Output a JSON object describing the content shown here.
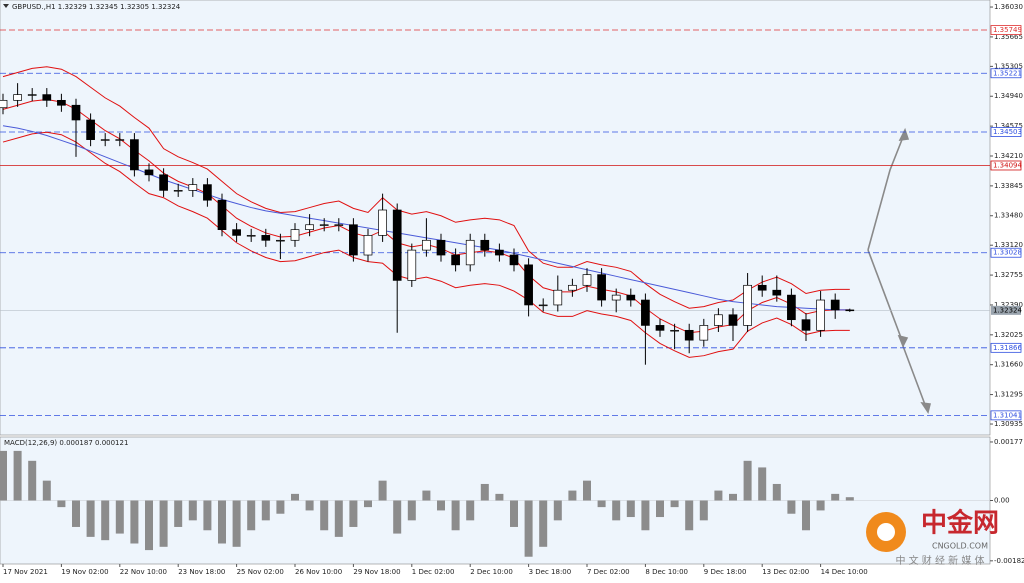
{
  "chart_data": {
    "type": "candlestick",
    "header": "GBPUSD.,H1  1.32329 1.32345 1.32305 1.32324",
    "categories": [
      "17 Nov 2021",
      null,
      null,
      null,
      "19 Nov 02:00",
      null,
      null,
      null,
      "22 Nov 10:00",
      null,
      null,
      null,
      "23 Nov 18:00",
      null,
      null,
      null,
      "25 Nov 02:00",
      null,
      null,
      null,
      "26 Nov 10:00",
      null,
      null,
      null,
      "29 Nov 18:00",
      null,
      null,
      null,
      "1 Dec 02:00",
      null,
      null,
      null,
      "2 Dec 10:00",
      null,
      null,
      null,
      "3 Dec 18:00",
      null,
      null,
      null,
      "7 Dec 02:00",
      null,
      null,
      null,
      "8 Dec 10:00",
      null,
      null,
      null,
      "9 Dec 18:00",
      null,
      null,
      null,
      "13 Dec 02:00",
      null,
      null,
      null,
      "14 Dec 10:00",
      null,
      null
    ],
    "open": [
      1.348,
      1.3489,
      1.3496,
      1.3496,
      1.3489,
      1.3483,
      1.3465,
      1.3441,
      1.3441,
      1.3441,
      1.3404,
      1.3398,
      1.3379,
      1.3379,
      1.3386,
      1.3367,
      1.3331,
      1.3324,
      1.3324,
      1.3318,
      1.3318,
      1.3331,
      1.3337,
      1.3337,
      1.3337,
      1.33,
      1.3324,
      1.3355,
      1.3269,
      1.3306,
      1.3318,
      1.33,
      1.3288,
      1.3318,
      1.3306,
      1.33,
      1.3288,
      1.3239,
      1.3239,
      1.3257,
      1.3263,
      1.3276,
      1.3245,
      1.3251,
      1.3245,
      1.3214,
      1.3208,
      1.3208,
      1.3196,
      1.3214,
      1.3227,
      1.3214,
      1.3263,
      1.3257,
      1.3251,
      1.3221,
      1.3208,
      1.3245,
      1.32329
    ],
    "high": [
      1.3497,
      1.351,
      1.3504,
      1.3504,
      1.3497,
      1.3491,
      1.3473,
      1.3449,
      1.3449,
      1.3449,
      1.3412,
      1.3406,
      1.3387,
      1.3394,
      1.3394,
      1.3375,
      1.3339,
      1.3332,
      1.3332,
      1.3326,
      1.3339,
      1.335,
      1.3345,
      1.3345,
      1.3345,
      1.3332,
      1.3375,
      1.3363,
      1.3314,
      1.3345,
      1.3326,
      1.3308,
      1.3326,
      1.3326,
      1.3314,
      1.3308,
      1.3296,
      1.3247,
      1.3275,
      1.3271,
      1.3284,
      1.3284,
      1.3259,
      1.3259,
      1.3253,
      1.3222,
      1.3216,
      1.3216,
      1.3222,
      1.3235,
      1.3235,
      1.3278,
      1.3275,
      1.3275,
      1.3259,
      1.3229,
      1.3256,
      1.3253,
      1.32345
    ],
    "low": [
      1.3472,
      1.3481,
      1.3488,
      1.3481,
      1.3475,
      1.342,
      1.3433,
      1.3433,
      1.3433,
      1.3396,
      1.339,
      1.3371,
      1.3371,
      1.3371,
      1.3359,
      1.3323,
      1.3316,
      1.3316,
      1.331,
      1.3295,
      1.331,
      1.3323,
      1.3329,
      1.3329,
      1.3292,
      1.3292,
      1.3316,
      1.3205,
      1.3261,
      1.3298,
      1.3292,
      1.328,
      1.328,
      1.3298,
      1.3292,
      1.328,
      1.3225,
      1.3231,
      1.3231,
      1.3249,
      1.3255,
      1.3237,
      1.323,
      1.3237,
      1.3166,
      1.32,
      1.3185,
      1.318,
      1.3188,
      1.3206,
      1.3195,
      1.3206,
      1.3249,
      1.3243,
      1.3213,
      1.3195,
      1.32,
      1.3222,
      1.32305
    ],
    "close": [
      1.3489,
      1.3496,
      1.3496,
      1.3489,
      1.3483,
      1.3465,
      1.3441,
      1.3441,
      1.3441,
      1.3404,
      1.3398,
      1.3379,
      1.3379,
      1.3386,
      1.3367,
      1.3331,
      1.3324,
      1.3324,
      1.3318,
      1.3318,
      1.3331,
      1.3337,
      1.3337,
      1.3337,
      1.33,
      1.3324,
      1.3355,
      1.3269,
      1.3306,
      1.3318,
      1.33,
      1.3288,
      1.3318,
      1.3306,
      1.33,
      1.3288,
      1.3239,
      1.3239,
      1.3257,
      1.3263,
      1.3276,
      1.3245,
      1.3251,
      1.3245,
      1.3214,
      1.3208,
      1.3208,
      1.3196,
      1.3214,
      1.3227,
      1.3214,
      1.3263,
      1.3257,
      1.3251,
      1.3221,
      1.3208,
      1.3245,
      1.32329,
      1.32324
    ],
    "up_color": "#ffffff",
    "down_color": "#000000",
    "wick_color": "#000000",
    "ylim": [
      1.30801,
      1.36116
    ],
    "yticks": [
      {
        "value": 1.3603,
        "label": "1.36030"
      },
      1.35665,
      1.35305,
      {
        "value": 1.3494,
        "label": "1.34940"
      },
      1.34575,
      {
        "value": 1.3421,
        "label": "1.34210"
      },
      1.33845,
      {
        "value": 1.3348,
        "label": "1.33480"
      },
      {
        "value": 1.3312,
        "label": "1.33120"
      },
      1.32755,
      {
        "value": 1.3239,
        "label": "1.32390"
      },
      1.32025,
      {
        "value": 1.3166,
        "label": "1.31660"
      },
      1.31295,
      1.30935
    ],
    "overlays": [
      {
        "color": "#e01010",
        "values": [
          1.3518,
          1.3523,
          1.3528,
          1.353,
          1.3527,
          1.3518,
          1.3505,
          1.3492,
          1.3482,
          1.3468,
          1.3455,
          1.343,
          1.342,
          1.3413,
          1.3405,
          1.339,
          1.3375,
          1.3365,
          1.3357,
          1.3352,
          1.3353,
          1.3358,
          1.3363,
          1.3366,
          1.3357,
          1.3352,
          1.337,
          1.3355,
          1.335,
          1.3353,
          1.3348,
          1.334,
          1.3343,
          1.3345,
          1.3343,
          1.3336,
          1.3305,
          1.329,
          1.3285,
          1.3285,
          1.3292,
          1.3288,
          1.3285,
          1.328,
          1.3265,
          1.3252,
          1.3243,
          1.3235,
          1.3237,
          1.3242,
          1.3245,
          1.3257,
          1.3267,
          1.3273,
          1.3265,
          1.3253,
          1.3257,
          1.3258,
          1.3258
        ]
      },
      {
        "color": "#e01010",
        "values": [
          1.3478,
          1.3483,
          1.3488,
          1.349,
          1.3487,
          1.3478,
          1.3465,
          1.3452,
          1.3442,
          1.3428,
          1.3415,
          1.34,
          1.339,
          1.3383,
          1.3375,
          1.336,
          1.3345,
          1.3335,
          1.3327,
          1.3322,
          1.3323,
          1.3328,
          1.3333,
          1.3336,
          1.3327,
          1.3322,
          1.333,
          1.3315,
          1.331,
          1.3313,
          1.3308,
          1.33,
          1.3303,
          1.3305,
          1.3303,
          1.3296,
          1.3275,
          1.326,
          1.3255,
          1.3255,
          1.3262,
          1.3258,
          1.3255,
          1.325,
          1.3235,
          1.3222,
          1.3213,
          1.3205,
          1.3207,
          1.3212,
          1.3215,
          1.3232,
          1.3242,
          1.3248,
          1.324,
          1.3228,
          1.3232,
          1.3233,
          1.3233
        ]
      },
      {
        "color": "#e01010",
        "values": [
          1.3438,
          1.3443,
          1.3448,
          1.345,
          1.3447,
          1.3438,
          1.3425,
          1.3412,
          1.3402,
          1.3388,
          1.3375,
          1.337,
          1.336,
          1.3353,
          1.3345,
          1.333,
          1.3315,
          1.3305,
          1.3297,
          1.3292,
          1.3293,
          1.3298,
          1.3303,
          1.3306,
          1.3297,
          1.3292,
          1.329,
          1.3275,
          1.327,
          1.3273,
          1.3268,
          1.326,
          1.3263,
          1.3265,
          1.3263,
          1.3256,
          1.3245,
          1.323,
          1.3225,
          1.3225,
          1.3232,
          1.3228,
          1.3225,
          1.322,
          1.3205,
          1.3192,
          1.3183,
          1.3175,
          1.3177,
          1.3182,
          1.3185,
          1.3207,
          1.3217,
          1.3223,
          1.3215,
          1.3203,
          1.3207,
          1.3208,
          1.3208
        ]
      },
      {
        "color": "#4a5ad8",
        "values": [
          1.3458,
          1.3455,
          1.3451,
          1.3446,
          1.344,
          1.3434,
          1.3427,
          1.342,
          1.3413,
          1.3406,
          1.3399,
          1.3392,
          1.3386,
          1.338,
          1.3374,
          1.3368,
          1.3363,
          1.3358,
          1.3354,
          1.3351,
          1.3348,
          1.3345,
          1.3342,
          1.3339,
          1.3336,
          1.3333,
          1.333,
          1.3327,
          1.3324,
          1.3321,
          1.3318,
          1.3315,
          1.3312,
          1.3309,
          1.3306,
          1.3302,
          1.3298,
          1.3294,
          1.329,
          1.3286,
          1.3282,
          1.3278,
          1.3274,
          1.327,
          1.3266,
          1.3262,
          1.3258,
          1.3254,
          1.325,
          1.3246,
          1.3243,
          1.3241,
          1.3239,
          1.3237,
          1.3236,
          1.3235,
          1.3234,
          1.3233,
          1.3233
        ]
      }
    ],
    "levels": {
      "values": [
        1.35749,
        1.35221,
        1.34503,
        1.34094,
        1.33028,
        1.31866,
        1.31041
      ],
      "colors": [
        "#e03030",
        "#3050e0",
        "#3050e0",
        "#d01010",
        "#3050e0",
        "#3050e0",
        "#3050e0"
      ],
      "dashed": [
        true,
        true,
        true,
        false,
        true,
        true,
        true
      ]
    },
    "last_price_color": "#9aa4ae",
    "macd": {
      "title": "MACD(12,26,9) 0.000187 0.000121",
      "color": "#8c8c8c",
      "values": [
        0.0015,
        0.0015,
        0.0012,
        0.0006,
        -0.0002,
        -0.0008,
        -0.0011,
        -0.0012,
        -0.001,
        -0.0013,
        -0.0015,
        -0.0014,
        -0.0008,
        -0.0006,
        -0.0009,
        -0.0013,
        -0.0014,
        -0.0009,
        -0.0006,
        -0.0004,
        0.0002,
        -0.0003,
        -0.0009,
        -0.0011,
        -0.0008,
        -0.0002,
        0.0006,
        -0.001,
        -0.0006,
        0.0003,
        -0.0003,
        -0.0009,
        -0.0006,
        0.0005,
        0.0002,
        -0.0008,
        -0.0017,
        -0.0014,
        -0.0006,
        0.0003,
        0.0006,
        -0.0002,
        -0.0006,
        -0.0005,
        -0.0009,
        -0.0005,
        -0.0002,
        -0.0009,
        -0.0006,
        0.0003,
        0.0002,
        0.0012,
        0.001,
        0.0005,
        -0.0004,
        -0.0009,
        -0.0003,
        0.0002,
        0.0001
      ],
      "ylim": [
        -0.00192,
        0.00192
      ],
      "yticks": [
        0.00177,
        {
          "value": 0,
          "label": "0.00"
        },
        {
          "value": -0.001824,
          "label": "-0.001824"
        }
      ]
    },
    "watermark": {
      "name": "中金网",
      "domain": "CNGOLD.COM",
      "slogan": "中 文 财 经 新 媒 体"
    }
  }
}
